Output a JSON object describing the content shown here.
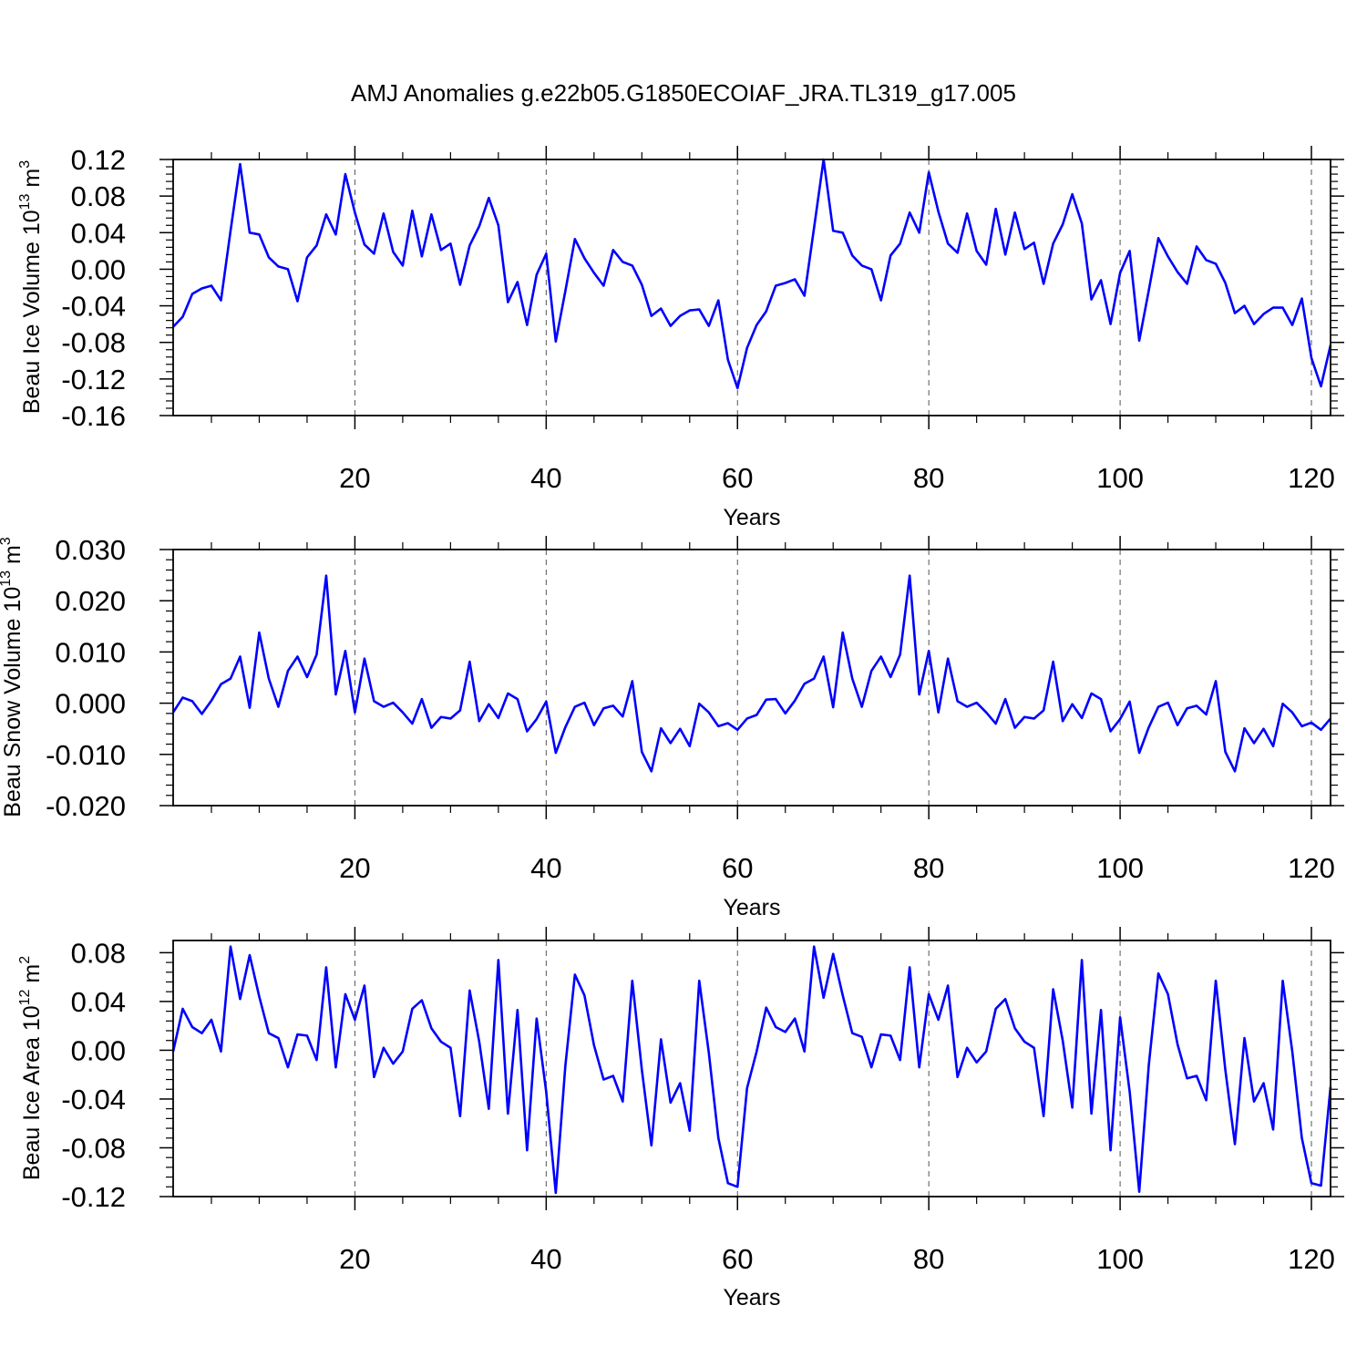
{
  "title": "AMJ Anomalies g.e22b05.G1850ECOIAF_JRA.TL319_g17.005",
  "chart_data": [
    {
      "type": "line",
      "title": "AMJ Anomalies g.e22b05.G1850ECOIAF_JRA.TL319_g17.005",
      "xlabel": "Years",
      "ylabel_parts": [
        "Beau Ice Volume 10",
        "13",
        " m",
        "3"
      ],
      "xlim": [
        1,
        122
      ],
      "ylim": [
        -0.16,
        0.12
      ],
      "xticks": [
        20,
        40,
        60,
        80,
        100,
        120
      ],
      "yticks": [
        -0.16,
        -0.12,
        -0.08,
        -0.04,
        0.0,
        0.04,
        0.08,
        0.12
      ],
      "ytick_labels": [
        "-0.16",
        "-0.12",
        "-0.08",
        "-0.04",
        "0.00",
        "0.04",
        "0.08",
        "0.12"
      ],
      "grid": "vertical dashed at major x ticks",
      "line_color": "#0000ff",
      "series": [
        {
          "values": [
            -0.063,
            -0.052,
            -0.027,
            -0.021,
            -0.018,
            -0.034,
            0.042,
            0.115,
            0.04,
            0.038,
            0.013,
            0.003,
            0.0,
            -0.035,
            0.013,
            0.026,
            0.06,
            0.038,
            0.104,
            0.062,
            0.027,
            0.017,
            0.061,
            0.019,
            0.004,
            0.064,
            0.014,
            0.06,
            0.021,
            0.028,
            -0.017,
            0.026,
            0.047,
            0.078,
            0.048,
            -0.036,
            -0.014,
            -0.061,
            -0.006,
            0.017,
            -0.079,
            -0.024,
            0.033,
            0.012,
            -0.004,
            -0.018,
            0.021,
            0.008,
            0.004,
            -0.017,
            -0.051,
            -0.043,
            -0.062,
            -0.051,
            -0.045,
            -0.044,
            -0.062,
            -0.034,
            -0.099,
            -0.13,
            -0.086,
            -0.061,
            -0.046,
            -0.018,
            -0.015,
            -0.011,
            -0.029,
            0.045,
            0.12,
            0.042,
            0.04,
            0.015,
            0.004,
            0.0,
            -0.034,
            0.015,
            0.028,
            0.062,
            0.04,
            0.106,
            0.063,
            0.028,
            0.018,
            0.061,
            0.02,
            0.005,
            0.066,
            0.016,
            0.062,
            0.022,
            0.029,
            -0.016,
            0.028,
            0.049,
            0.082,
            0.05,
            -0.033,
            -0.012,
            -0.06,
            -0.004,
            0.02,
            -0.078,
            -0.023,
            0.034,
            0.014,
            -0.003,
            -0.016,
            0.025,
            0.01,
            0.006,
            -0.015,
            -0.048,
            -0.04,
            -0.06,
            -0.049,
            -0.042,
            -0.042,
            -0.061,
            -0.032,
            -0.097,
            -0.128,
            -0.083
          ]
        }
      ]
    },
    {
      "type": "line",
      "xlabel": "Years",
      "ylabel_parts": [
        "Beau Snow Volume 10",
        "13",
        " m",
        "3"
      ],
      "xlim": [
        1,
        122
      ],
      "ylim": [
        -0.02,
        0.03
      ],
      "xticks": [
        20,
        40,
        60,
        80,
        100,
        120
      ],
      "yticks": [
        -0.02,
        -0.01,
        0.0,
        0.01,
        0.02,
        0.03
      ],
      "ytick_labels": [
        "-0.020",
        "-0.010",
        "0.000",
        "0.010",
        "0.020",
        "0.030"
      ],
      "grid": "vertical dashed at major x ticks",
      "line_color": "#0000ff",
      "series": [
        {
          "values": [
            -0.0018,
            0.0011,
            0.0004,
            -0.0021,
            0.0005,
            0.0037,
            0.0048,
            0.0091,
            -0.0009,
            0.0138,
            0.0048,
            -0.0007,
            0.0063,
            0.0091,
            0.0051,
            0.0095,
            0.0249,
            0.0017,
            0.0102,
            -0.0018,
            0.0087,
            0.0004,
            -0.0007,
            0.0001,
            -0.0018,
            -0.004,
            0.0008,
            -0.0048,
            -0.0027,
            -0.003,
            -0.0014,
            0.0081,
            -0.0035,
            -0.0002,
            -0.0029,
            0.0019,
            0.0008,
            -0.0055,
            -0.0031,
            0.0003,
            -0.0097,
            -0.0047,
            -0.0007,
            0.0001,
            -0.0043,
            -0.001,
            -0.0005,
            -0.0026,
            0.0043,
            -0.0095,
            -0.0133,
            -0.0049,
            -0.0078,
            -0.005,
            -0.0084,
            -0.0001,
            -0.0018,
            -0.0045,
            -0.0039,
            -0.0052,
            -0.003,
            -0.0023,
            0.0007,
            0.0008,
            -0.002,
            0.0005,
            0.0038,
            0.0048,
            0.0091,
            -0.0008,
            0.0138,
            0.0048,
            -0.0007,
            0.0063,
            0.0091,
            0.0051,
            0.0095,
            0.0249,
            0.0017,
            0.0102,
            -0.0018,
            0.0087,
            0.0004,
            -0.0007,
            0.0001,
            -0.0018,
            -0.004,
            0.0008,
            -0.0048,
            -0.0027,
            -0.003,
            -0.0014,
            0.0081,
            -0.0035,
            -0.0002,
            -0.0029,
            0.0019,
            0.0008,
            -0.0055,
            -0.0031,
            0.0003,
            -0.0097,
            -0.0047,
            -0.0007,
            0.0001,
            -0.0043,
            -0.001,
            -0.0005,
            -0.0022,
            0.0043,
            -0.0095,
            -0.0133,
            -0.0049,
            -0.0078,
            -0.005,
            -0.0084,
            -0.0001,
            -0.0018,
            -0.0045,
            -0.0038,
            -0.0052,
            -0.003
          ]
        }
      ]
    },
    {
      "type": "line",
      "xlabel": "Years",
      "ylabel_parts": [
        "Beau Ice Area 10",
        "12",
        " m",
        "2"
      ],
      "xlim": [
        1,
        122
      ],
      "ylim": [
        -0.12,
        0.09
      ],
      "xticks": [
        20,
        40,
        60,
        80,
        100,
        120
      ],
      "yticks": [
        -0.12,
        -0.08,
        -0.04,
        0.0,
        0.04,
        0.08
      ],
      "ytick_labels": [
        "-0.12",
        "-0.08",
        "-0.04",
        "0.00",
        "0.04",
        "0.08"
      ],
      "grid": "vertical dashed at major x ticks",
      "line_color": "#0000ff",
      "series": [
        {
          "values": [
            -0.001,
            0.034,
            0.019,
            0.014,
            0.025,
            -0.001,
            0.085,
            0.042,
            0.078,
            0.044,
            0.014,
            0.01,
            -0.014,
            0.013,
            0.012,
            -0.008,
            0.068,
            -0.014,
            0.046,
            0.025,
            0.053,
            -0.022,
            0.002,
            -0.011,
            -0.001,
            0.034,
            0.041,
            0.018,
            0.007,
            0.002,
            -0.054,
            0.049,
            0.007,
            -0.048,
            0.074,
            -0.052,
            0.033,
            -0.082,
            0.026,
            -0.034,
            -0.117,
            -0.013,
            0.062,
            0.045,
            0.004,
            -0.024,
            -0.021,
            -0.042,
            0.057,
            -0.016,
            -0.078,
            0.009,
            -0.043,
            -0.027,
            -0.066,
            0.057,
            -0.002,
            -0.072,
            -0.109,
            -0.112,
            -0.031,
            -0.001,
            0.035,
            0.019,
            0.015,
            0.026,
            -0.001,
            0.085,
            0.043,
            0.079,
            0.045,
            0.014,
            0.011,
            -0.014,
            0.013,
            0.012,
            -0.008,
            0.068,
            -0.014,
            0.046,
            0.025,
            0.053,
            -0.022,
            0.002,
            -0.01,
            -0.001,
            0.034,
            0.042,
            0.018,
            0.007,
            0.002,
            -0.054,
            0.05,
            0.008,
            -0.047,
            0.074,
            -0.052,
            0.033,
            -0.082,
            0.027,
            -0.034,
            -0.116,
            -0.012,
            0.063,
            0.046,
            0.005,
            -0.023,
            -0.021,
            -0.041,
            0.057,
            -0.016,
            -0.077,
            0.01,
            -0.042,
            -0.027,
            -0.065,
            0.057,
            -0.001,
            -0.072,
            -0.109,
            -0.111,
            -0.03
          ]
        }
      ]
    }
  ]
}
